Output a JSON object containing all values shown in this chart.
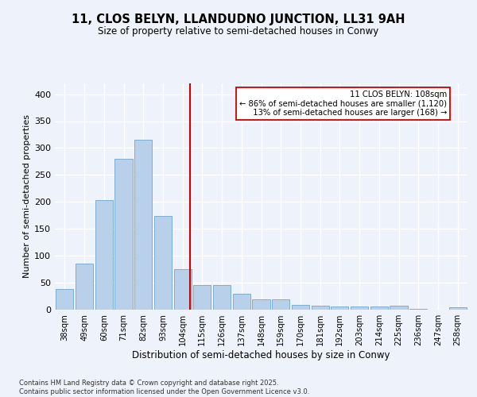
{
  "title": "11, CLOS BELYN, LLANDUDNO JUNCTION, LL31 9AH",
  "subtitle": "Size of property relative to semi-detached houses in Conwy",
  "xlabel": "Distribution of semi-detached houses by size in Conwy",
  "ylabel": "Number of semi-detached properties",
  "bin_labels": [
    "38sqm",
    "49sqm",
    "60sqm",
    "71sqm",
    "82sqm",
    "93sqm",
    "104sqm",
    "115sqm",
    "126sqm",
    "137sqm",
    "148sqm",
    "159sqm",
    "170sqm",
    "181sqm",
    "192sqm",
    "203sqm",
    "214sqm",
    "225sqm",
    "236sqm",
    "247sqm",
    "258sqm"
  ],
  "bin_values": [
    38,
    86,
    204,
    280,
    315,
    174,
    75,
    45,
    45,
    30,
    19,
    19,
    9,
    8,
    6,
    6,
    6,
    7,
    1,
    0,
    4
  ],
  "bar_color": "#b8d0ea",
  "bar_edge_color": "#7aaed4",
  "vline_bin_index": 6.36,
  "property_label": "11 CLOS BELYN: 108sqm",
  "pct_smaller": 86,
  "count_smaller": 1120,
  "pct_larger": 13,
  "count_larger": 168,
  "annotation_box_color": "#ffffff",
  "annotation_box_edge": "#cc0000",
  "vline_color": "#cc0000",
  "footer_text": "Contains HM Land Registry data © Crown copyright and database right 2025.\nContains public sector information licensed under the Open Government Licence v3.0.",
  "background_color": "#eef2fa",
  "ylim": [
    0,
    420
  ],
  "yticks": [
    0,
    50,
    100,
    150,
    200,
    250,
    300,
    350,
    400
  ]
}
